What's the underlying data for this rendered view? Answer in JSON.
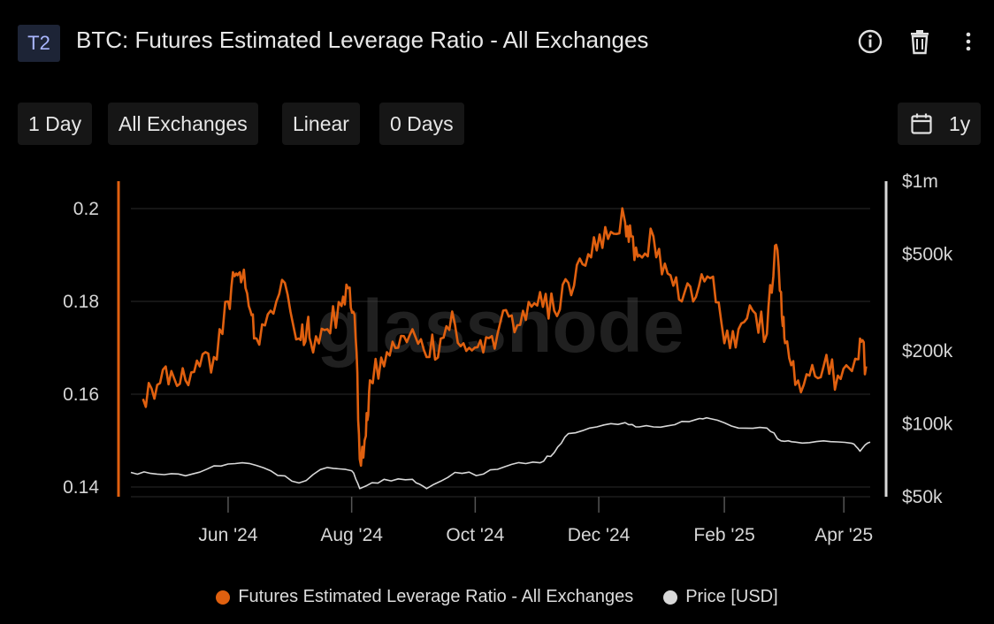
{
  "header": {
    "badge": "T2",
    "title": "BTC: Futures Estimated Leverage Ratio - All Exchanges"
  },
  "icons": {
    "info": "info-icon",
    "delete": "trash-icon",
    "menu": "more-vertical-icon",
    "calendar": "calendar-icon"
  },
  "toolbar": {
    "resolution": "1 Day",
    "exchange": "All Exchanges",
    "scale": "Linear",
    "sma": "0 Days",
    "range": "1y"
  },
  "watermark": "glassnode",
  "colors": {
    "leverage": "#e0600f",
    "price": "#d8d8d8",
    "grid": "#2a2a2a",
    "background": "#000000"
  },
  "chart_data": {
    "type": "line",
    "x_range": [
      "2024-04-14",
      "2025-04-14"
    ],
    "x_ticks": [
      {
        "date": "2024-06-01",
        "label": "Jun '24"
      },
      {
        "date": "2024-08-01",
        "label": "Aug '24"
      },
      {
        "date": "2024-10-01",
        "label": "Oct '24"
      },
      {
        "date": "2024-12-01",
        "label": "Dec '24"
      },
      {
        "date": "2025-02-01",
        "label": "Feb '25"
      },
      {
        "date": "2025-04-01",
        "label": "Apr '25"
      }
    ],
    "y_left": {
      "min": 0.14,
      "max": 0.2,
      "ticks": [
        0.14,
        0.16,
        0.18,
        0.2
      ],
      "tick_labels": [
        "0.14",
        "0.16",
        "0.18",
        "0.2"
      ]
    },
    "y_right": {
      "scale": "log",
      "min": 50000,
      "max": 1000000,
      "ticks": [
        50000,
        100000,
        200000,
        500000,
        1000000
      ],
      "tick_labels": [
        "$50k",
        "$100k",
        "$200k",
        "$500k",
        "$1m"
      ]
    },
    "grid": true,
    "legend": "bottom-center",
    "series": [
      {
        "name": "Futures Estimated Leverage Ratio - All Exchanges",
        "axis": "left",
        "x": [
          "2024-04-20",
          "2024-04-27",
          "2024-05-04",
          "2024-05-11",
          "2024-05-18",
          "2024-05-25",
          "2024-06-01",
          "2024-06-05",
          "2024-06-08",
          "2024-06-12",
          "2024-06-15",
          "2024-06-22",
          "2024-06-29",
          "2024-07-06",
          "2024-07-10",
          "2024-07-13",
          "2024-07-20",
          "2024-07-27",
          "2024-07-31",
          "2024-08-03",
          "2024-08-05",
          "2024-08-08",
          "2024-08-10",
          "2024-08-17",
          "2024-08-24",
          "2024-08-31",
          "2024-09-07",
          "2024-09-14",
          "2024-09-21",
          "2024-09-28",
          "2024-10-05",
          "2024-10-12",
          "2024-10-19",
          "2024-10-26",
          "2024-11-02",
          "2024-11-09",
          "2024-11-16",
          "2024-11-23",
          "2024-11-30",
          "2024-12-07",
          "2024-12-14",
          "2024-12-17",
          "2024-12-21",
          "2024-12-28",
          "2025-01-04",
          "2025-01-11",
          "2025-01-18",
          "2025-01-25",
          "2025-02-01",
          "2025-02-08",
          "2025-02-15",
          "2025-02-22",
          "2025-02-26",
          "2025-03-01",
          "2025-03-03",
          "2025-03-08",
          "2025-03-15",
          "2025-03-22",
          "2025-03-29",
          "2025-04-05",
          "2025-04-09",
          "2025-04-12"
        ],
        "values": [
          0.159,
          0.162,
          0.165,
          0.163,
          0.166,
          0.168,
          0.18,
          0.186,
          0.185,
          0.178,
          0.172,
          0.178,
          0.184,
          0.172,
          0.175,
          0.169,
          0.174,
          0.179,
          0.183,
          0.172,
          0.146,
          0.151,
          0.163,
          0.166,
          0.17,
          0.174,
          0.168,
          0.172,
          0.175,
          0.17,
          0.169,
          0.173,
          0.177,
          0.176,
          0.182,
          0.178,
          0.184,
          0.188,
          0.191,
          0.195,
          0.197,
          0.194,
          0.19,
          0.194,
          0.186,
          0.18,
          0.181,
          0.185,
          0.171,
          0.174,
          0.178,
          0.173,
          0.192,
          0.182,
          0.171,
          0.162,
          0.164,
          0.166,
          0.164,
          0.165,
          0.172,
          0.166
        ]
      },
      {
        "name": "Price [USD]",
        "axis": "right",
        "x": [
          "2024-04-14",
          "2024-04-27",
          "2024-05-11",
          "2024-05-25",
          "2024-06-08",
          "2024-06-22",
          "2024-07-06",
          "2024-07-20",
          "2024-08-01",
          "2024-08-05",
          "2024-08-17",
          "2024-08-31",
          "2024-09-07",
          "2024-09-21",
          "2024-10-05",
          "2024-10-19",
          "2024-11-02",
          "2024-11-09",
          "2024-11-16",
          "2024-11-30",
          "2024-12-14",
          "2024-12-21",
          "2025-01-04",
          "2025-01-18",
          "2025-01-25",
          "2025-02-08",
          "2025-02-22",
          "2025-03-01",
          "2025-03-08",
          "2025-03-22",
          "2025-04-05",
          "2025-04-09",
          "2025-04-14"
        ],
        "values": [
          63000,
          62000,
          61000,
          67000,
          69000,
          64000,
          57000,
          66000,
          64000,
          54000,
          59000,
          59000,
          54000,
          63000,
          62000,
          68000,
          69000,
          76000,
          91000,
          97000,
          101000,
          97000,
          98000,
          104000,
          105000,
          96000,
          96000,
          85000,
          84000,
          85000,
          83000,
          77000,
          84000
        ]
      }
    ]
  }
}
